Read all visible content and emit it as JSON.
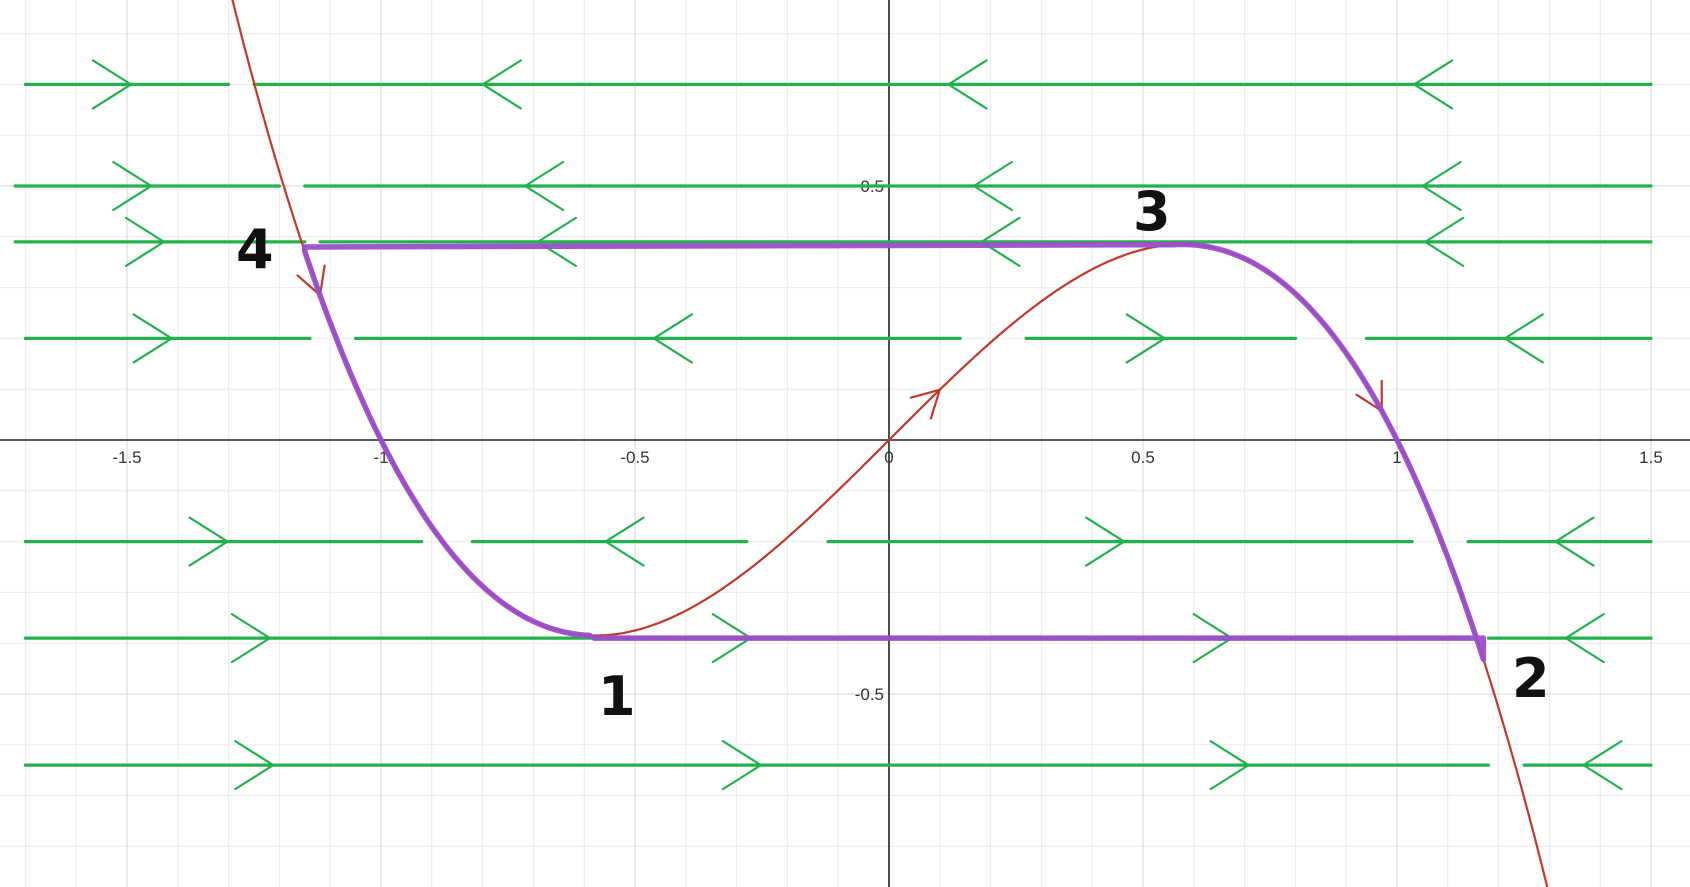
{
  "chart_data": {
    "type": "line",
    "title": "",
    "xlabel": "",
    "ylabel": "",
    "xlim": [
      -1.75,
      1.55
    ],
    "ylim": [
      -0.88,
      0.86
    ],
    "grid": true,
    "x_ticks": [
      {
        "value": -1.5,
        "label": "-1.5"
      },
      {
        "value": -1,
        "label": "-1"
      },
      {
        "value": -0.5,
        "label": "-0.5"
      },
      {
        "value": 0,
        "label": "0"
      },
      {
        "value": 0.5,
        "label": "0.5"
      },
      {
        "value": 1,
        "label": "1"
      },
      {
        "value": 1.5,
        "label": "1.5"
      }
    ],
    "y_ticks": [
      {
        "value": 0.5,
        "label": "0.5"
      },
      {
        "value": -0.5,
        "label": "-0.5"
      }
    ],
    "curve": {
      "description": "cubic nullcline",
      "coefficients": {
        "a": 1,
        "b": -1.5
      },
      "color": "#c0392b",
      "arrows": [
        {
          "x": 0.1,
          "direction": "up-right"
        },
        {
          "x": -1.12,
          "direction": "down-right"
        },
        {
          "x": 0.97,
          "direction": "down-right"
        }
      ]
    },
    "flow_lines": {
      "color": "#22b14c",
      "rows": [
        {
          "y": 0.7,
          "segments": [
            [
              -1.7,
              -1.3,
              "right"
            ],
            [
              -1.25,
              1.5,
              "left"
            ]
          ]
        },
        {
          "y": 0.5,
          "segments": [
            [
              -1.72,
              -1.2,
              "right"
            ],
            [
              -1.15,
              1.5,
              "left"
            ]
          ]
        },
        {
          "y": 0.39,
          "segments": [
            [
              -1.72,
              -1.15,
              "right"
            ],
            [
              -1.12,
              1.5,
              "left"
            ]
          ]
        },
        {
          "y": 0.2,
          "segments": [
            [
              -1.7,
              -1.14,
              "right"
            ],
            [
              -1.05,
              0.14,
              "left"
            ],
            [
              0.27,
              0.8,
              "right"
            ],
            [
              0.94,
              1.5,
              "left"
            ]
          ]
        },
        {
          "y": -0.2,
          "segments": [
            [
              -1.7,
              -0.92,
              "right"
            ],
            [
              -0.82,
              -0.28,
              "left"
            ],
            [
              -0.12,
              1.03,
              "right"
            ],
            [
              1.14,
              1.5,
              "left"
            ]
          ]
        },
        {
          "y": -0.39,
          "segments": [
            [
              -1.7,
              1.14,
              "right"
            ],
            [
              1.18,
              1.5,
              "left"
            ]
          ]
        },
        {
          "y": -0.64,
          "segments": [
            [
              -1.7,
              1.18,
              "right"
            ],
            [
              1.25,
              1.5,
              "left"
            ]
          ]
        }
      ]
    },
    "cycle": {
      "color": "#9b4dca",
      "points": [
        {
          "x": -0.58,
          "y": -0.39
        },
        {
          "x": 1.17,
          "y": -0.39
        },
        {
          "x": 0.55,
          "y": 0.38
        },
        {
          "x": -1.15,
          "y": 0.38
        }
      ],
      "labels": [
        "1",
        "2",
        "3",
        "4"
      ]
    }
  },
  "annotations": {
    "point1": "1",
    "point2": "2",
    "point3": "3",
    "point4": "4"
  },
  "colors": {
    "grid_minor": "#ebebeb",
    "grid_major": "#d4d4d4",
    "axis": "#222222",
    "curve": "#c0392b",
    "flow": "#22b14c",
    "cycle": "#9b4dca",
    "labels": "#111111"
  }
}
